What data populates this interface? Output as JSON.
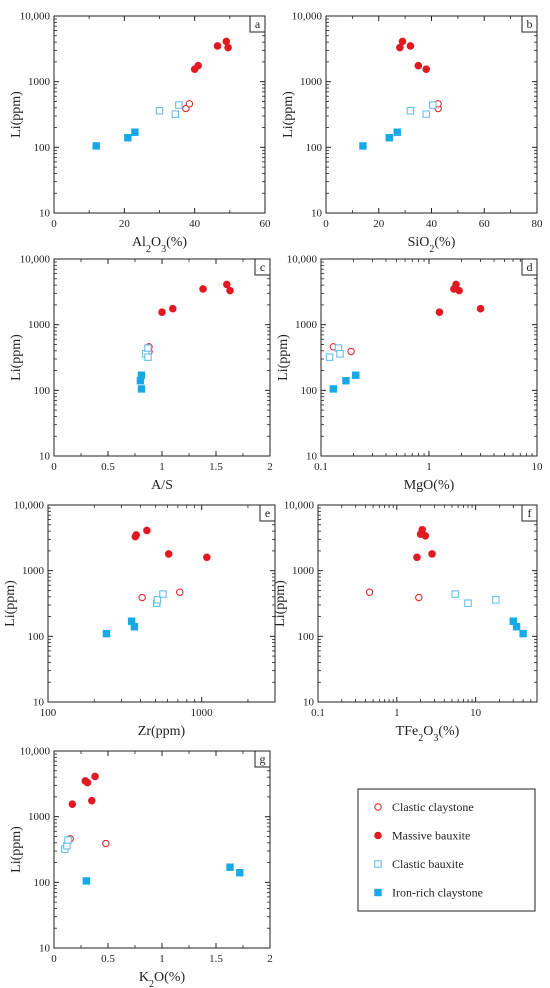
{
  "colors": {
    "massive": "#e11a22",
    "clastic_claystone": "#e11a22",
    "clastic_bauxite": "#5bb8ea",
    "iron_rich": "#16a9e6",
    "axis": "#222222"
  },
  "legend": [
    {
      "key": "clastic_claystone",
      "label": "Clastic claystone",
      "marker": "open-circle"
    },
    {
      "key": "massive",
      "label": "Massive bauxite",
      "marker": "filled-circle"
    },
    {
      "key": "clastic_bauxite",
      "label": "Clastic bauxite",
      "marker": "open-square"
    },
    {
      "key": "iron_rich",
      "label": "Iron-rich claystone",
      "marker": "filled-square"
    }
  ],
  "chart_data": [
    {
      "type": "scatter",
      "panel": "a",
      "xlabel": "Al2O3(%)",
      "ylabel": "Li(ppm)",
      "xscale": "linear",
      "yscale": "log",
      "xlim": [
        0,
        60
      ],
      "ylim": [
        10,
        10000
      ],
      "xticks": [
        "0",
        "20",
        "40",
        "60"
      ],
      "yticks": [
        "10",
        "100",
        "1000",
        "10,000"
      ],
      "series": [
        {
          "key": "massive",
          "points": [
            [
              40,
              1550
            ],
            [
              41,
              1750
            ],
            [
              46.5,
              3500
            ],
            [
              49,
              4100
            ],
            [
              49.5,
              3300
            ]
          ]
        },
        {
          "key": "clastic_claystone",
          "points": [
            [
              37.5,
              390
            ],
            [
              38.5,
              460
            ]
          ]
        },
        {
          "key": "clastic_bauxite",
          "points": [
            [
              30,
              360
            ],
            [
              34.5,
              320
            ],
            [
              35.5,
              440
            ]
          ]
        },
        {
          "key": "iron_rich",
          "points": [
            [
              12,
              105
            ],
            [
              21,
              140
            ],
            [
              23,
              170
            ]
          ]
        }
      ]
    },
    {
      "type": "scatter",
      "panel": "b",
      "xlabel": "SiO2(%)",
      "ylabel": "Li(ppm)",
      "xscale": "linear",
      "yscale": "log",
      "xlim": [
        0,
        80
      ],
      "ylim": [
        10,
        10000
      ],
      "xticks": [
        "0",
        "20",
        "40",
        "60",
        "80"
      ],
      "yticks": [
        "10",
        "100",
        "1000",
        "10,000"
      ],
      "series": [
        {
          "key": "massive",
          "points": [
            [
              28,
              3300
            ],
            [
              29,
              4100
            ],
            [
              32,
              3500
            ],
            [
              35,
              1750
            ],
            [
              38,
              1550
            ]
          ]
        },
        {
          "key": "clastic_claystone",
          "points": [
            [
              42.5,
              390
            ],
            [
              42.5,
              460
            ]
          ]
        },
        {
          "key": "clastic_bauxite",
          "points": [
            [
              32,
              360
            ],
            [
              38,
              320
            ],
            [
              40.5,
              440
            ]
          ]
        },
        {
          "key": "iron_rich",
          "points": [
            [
              14,
              105
            ],
            [
              24,
              140
            ],
            [
              27,
              170
            ]
          ]
        }
      ]
    },
    {
      "type": "scatter",
      "panel": "c",
      "xlabel": "A/S",
      "ylabel": "Li(ppm)",
      "xscale": "linear",
      "yscale": "log",
      "xlim": [
        0,
        2
      ],
      "ylim": [
        10,
        10000
      ],
      "xticks": [
        "0",
        "0.5",
        "1",
        "1.5",
        "2"
      ],
      "yticks": [
        "10",
        "100",
        "1000",
        "10,000"
      ],
      "series": [
        {
          "key": "massive",
          "points": [
            [
              1.0,
              1550
            ],
            [
              1.1,
              1750
            ],
            [
              1.38,
              3500
            ],
            [
              1.6,
              4100
            ],
            [
              1.63,
              3300
            ]
          ]
        },
        {
          "key": "clastic_claystone",
          "points": [
            [
              0.88,
              390
            ],
            [
              0.88,
              460
            ]
          ]
        },
        {
          "key": "clastic_bauxite",
          "points": [
            [
              0.85,
              360
            ],
            [
              0.87,
              320
            ],
            [
              0.87,
              440
            ]
          ]
        },
        {
          "key": "iron_rich",
          "points": [
            [
              0.81,
              105
            ],
            [
              0.8,
              140
            ],
            [
              0.81,
              170
            ]
          ]
        }
      ]
    },
    {
      "type": "scatter",
      "panel": "d",
      "xlabel": "MgO(%)",
      "ylabel": "Li(ppm)",
      "xscale": "log",
      "yscale": "log",
      "xlim": [
        0.1,
        10
      ],
      "ylim": [
        10,
        10000
      ],
      "xticks": [
        "0.1",
        "1",
        "10"
      ],
      "yticks": [
        "10",
        "100",
        "1000",
        "10,000"
      ],
      "series": [
        {
          "key": "massive",
          "points": [
            [
              1.25,
              1550
            ],
            [
              1.7,
              3500
            ],
            [
              1.78,
              4100
            ],
            [
              1.9,
              3300
            ],
            [
              3.0,
              1750
            ]
          ]
        },
        {
          "key": "clastic_claystone",
          "points": [
            [
              0.13,
              460
            ],
            [
              0.19,
              390
            ]
          ]
        },
        {
          "key": "clastic_bauxite",
          "points": [
            [
              0.12,
              320
            ],
            [
              0.145,
              440
            ],
            [
              0.15,
              360
            ]
          ]
        },
        {
          "key": "iron_rich",
          "points": [
            [
              0.13,
              105
            ],
            [
              0.17,
              140
            ],
            [
              0.21,
              170
            ]
          ]
        }
      ]
    },
    {
      "type": "scatter",
      "panel": "e",
      "xlabel": "Zr(ppm)",
      "ylabel": "Li(ppm)",
      "xscale": "log",
      "yscale": "log",
      "xlim": [
        100,
        3000
      ],
      "ylim": [
        10,
        10000
      ],
      "xticks": [
        "100",
        "1000"
      ],
      "yticks": [
        "10",
        "100",
        "1000",
        "10,000"
      ],
      "series": [
        {
          "key": "massive",
          "points": [
            [
              370,
              3300
            ],
            [
              375,
              3500
            ],
            [
              440,
              4100
            ],
            [
              610,
              1800
            ],
            [
              1080,
              1600
            ]
          ]
        },
        {
          "key": "clastic_claystone",
          "points": [
            [
              410,
              390
            ],
            [
              720,
              470
            ]
          ]
        },
        {
          "key": "clastic_bauxite",
          "points": [
            [
              510,
              320
            ],
            [
              515,
              360
            ],
            [
              560,
              440
            ]
          ]
        },
        {
          "key": "iron_rich",
          "points": [
            [
              240,
              110
            ],
            [
              350,
              170
            ],
            [
              365,
              140
            ]
          ]
        }
      ]
    },
    {
      "type": "scatter",
      "panel": "f",
      "xlabel": "TFe2O3(%)",
      "ylabel": "Li(ppm)",
      "xscale": "log",
      "yscale": "log",
      "xlim": [
        0.1,
        60
      ],
      "ylim": [
        10,
        10000
      ],
      "xticks": [
        "0.1",
        "1",
        "10"
      ],
      "yticks": [
        "10",
        "100",
        "1000",
        "10,000"
      ],
      "series": [
        {
          "key": "massive",
          "points": [
            [
              1.8,
              1600
            ],
            [
              2.0,
              3600
            ],
            [
              2.1,
              4200
            ],
            [
              2.3,
              3400
            ],
            [
              2.8,
              1800
            ]
          ]
        },
        {
          "key": "clastic_claystone",
          "points": [
            [
              0.45,
              470
            ],
            [
              1.9,
              390
            ]
          ]
        },
        {
          "key": "clastic_bauxite",
          "points": [
            [
              5.5,
              440
            ],
            [
              8.0,
              320
            ],
            [
              18,
              360
            ]
          ]
        },
        {
          "key": "iron_rich",
          "points": [
            [
              30,
              170
            ],
            [
              33,
              140
            ],
            [
              40,
              110
            ]
          ]
        }
      ]
    },
    {
      "type": "scatter",
      "panel": "g",
      "xlabel": "K2O(%)",
      "ylabel": "Li(ppm)",
      "xscale": "linear",
      "yscale": "log",
      "xlim": [
        0,
        2
      ],
      "ylim": [
        10,
        10000
      ],
      "xticks": [
        "0",
        "0.5",
        "1",
        "1.5",
        "2"
      ],
      "yticks": [
        "10",
        "100",
        "1000",
        "10,000"
      ],
      "series": [
        {
          "key": "massive",
          "points": [
            [
              0.17,
              1550
            ],
            [
              0.29,
              3500
            ],
            [
              0.31,
              3300
            ],
            [
              0.35,
              1750
            ],
            [
              0.38,
              4100
            ]
          ]
        },
        {
          "key": "clastic_claystone",
          "points": [
            [
              0.15,
              460
            ],
            [
              0.48,
              390
            ]
          ]
        },
        {
          "key": "clastic_bauxite",
          "points": [
            [
              0.1,
              320
            ],
            [
              0.12,
              360
            ],
            [
              0.13,
              440
            ]
          ]
        },
        {
          "key": "iron_rich",
          "points": [
            [
              0.3,
              105
            ],
            [
              1.63,
              170
            ],
            [
              1.72,
              140
            ]
          ]
        }
      ]
    }
  ]
}
